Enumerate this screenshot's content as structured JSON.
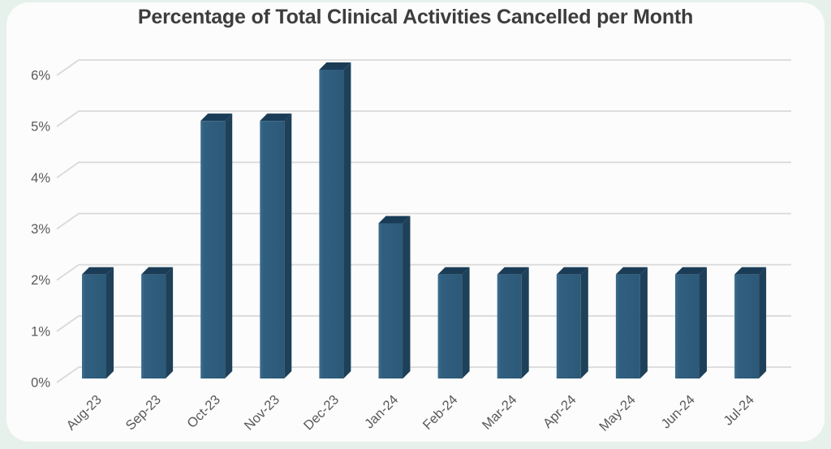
{
  "title": "Percentage of Total Clinical Activities Cancelled per Month",
  "chart_data": {
    "type": "bar",
    "style": "3d-column",
    "title": "Percentage of Total Clinical Activities Cancelled per Month",
    "categories": [
      "Aug-23",
      "Sep-23",
      "Oct-23",
      "Nov-23",
      "Dec-23",
      "Jan-24",
      "Feb-24",
      "Mar-24",
      "Apr-24",
      "May-24",
      "Jun-24",
      "Jul-24"
    ],
    "values": [
      2,
      2,
      5,
      5,
      6,
      3,
      2,
      2,
      2,
      2,
      2,
      2
    ],
    "xlabel": "",
    "ylabel": "",
    "ylim": [
      0,
      6
    ],
    "ytick_step": 1,
    "ytick_labels": [
      "0%",
      "1%",
      "2%",
      "3%",
      "4%",
      "5%",
      "6%"
    ],
    "grid": true,
    "legend": false,
    "x_label_rotation_deg": -45
  },
  "colors": {
    "page_bg": "#e7f1ec",
    "card_bg": "#fbfcfb",
    "title_text": "#3d3d3d",
    "axis_label": "#595959",
    "gridline": "#d9d9d9",
    "bar_front": "#2c5978",
    "bar_front_light": "#3d6e8f",
    "bar_front_mid": "#315f7f",
    "bar_side": "#1e4059",
    "bar_top": "#1a3c57"
  }
}
